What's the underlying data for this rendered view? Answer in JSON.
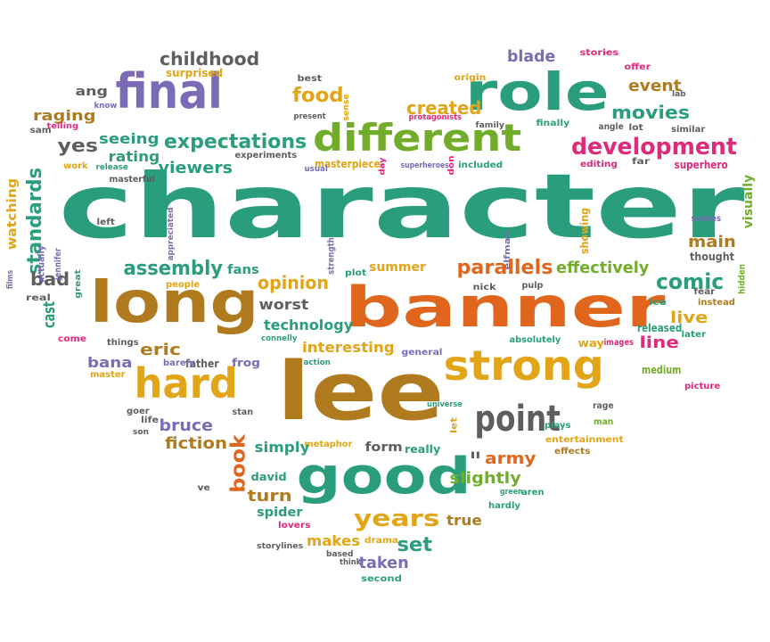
{
  "colors": {
    "green": "#2a9d7c",
    "orange": "#e0661e",
    "brown": "#b07b1e",
    "gold": "#e3a518",
    "purple": "#7b6bb7",
    "gray": "#5e5e5e",
    "pink": "#e0297a",
    "lime": "#71ad2b"
  },
  "words": [
    {
      "text": "character",
      "color": "green"
    },
    {
      "text": "banner",
      "color": "orange"
    },
    {
      "text": "lee",
      "color": "brown"
    },
    {
      "text": "long",
      "color": "brown"
    },
    {
      "text": "good",
      "color": "green"
    },
    {
      "text": "strong",
      "color": "gold"
    },
    {
      "text": "hard",
      "color": "gold"
    },
    {
      "text": "role",
      "color": "green"
    },
    {
      "text": "final",
      "color": "purple"
    },
    {
      "text": "different",
      "color": "lime"
    },
    {
      "text": "point",
      "color": "gray"
    },
    {
      "text": "development",
      "color": "pink"
    },
    {
      "text": "expectations",
      "color": "green"
    },
    {
      "text": "childhood",
      "color": "gray"
    },
    {
      "text": "parallels",
      "color": "orange"
    },
    {
      "text": "comic",
      "color": "green"
    },
    {
      "text": "years",
      "color": "gold"
    },
    {
      "text": "food",
      "color": "gold"
    },
    {
      "text": "movies",
      "color": "green"
    },
    {
      "text": "standards",
      "color": "green"
    },
    {
      "text": "book",
      "color": "orange"
    },
    {
      "text": "assembly",
      "color": "green"
    },
    {
      "text": "opinion",
      "color": "gold"
    },
    {
      "text": "created",
      "color": "gold"
    },
    {
      "text": "blade",
      "color": "purple"
    },
    {
      "text": "event",
      "color": "brown"
    },
    {
      "text": "viewers",
      "color": "green"
    },
    {
      "text": "seeing",
      "color": "green"
    },
    {
      "text": "effectively",
      "color": "lime"
    },
    {
      "text": "bruce",
      "color": "purple"
    },
    {
      "text": "fiction",
      "color": "brown"
    },
    {
      "text": "army",
      "color": "orange"
    },
    {
      "text": "slightly",
      "color": "lime"
    },
    {
      "text": "set",
      "color": "green"
    },
    {
      "text": "taken",
      "color": "purple"
    },
    {
      "text": "yes",
      "color": "gray"
    },
    {
      "text": "raging",
      "color": "brown"
    },
    {
      "text": "rating",
      "color": "green"
    },
    {
      "text": "bad",
      "color": "gray"
    },
    {
      "text": "cast",
      "color": "green"
    },
    {
      "text": "eric",
      "color": "brown"
    },
    {
      "text": "bana",
      "color": "purple"
    },
    {
      "text": "main",
      "color": "brown"
    },
    {
      "text": "live",
      "color": "gold"
    },
    {
      "text": "line",
      "color": "pink"
    },
    {
      "text": "simply",
      "color": "green"
    },
    {
      "text": "turn",
      "color": "brown"
    },
    {
      "text": "makes",
      "color": "gold"
    },
    {
      "text": "true",
      "color": "brown"
    },
    {
      "text": "worst",
      "color": "gray"
    },
    {
      "text": "technology",
      "color": "green"
    },
    {
      "text": "interesting",
      "color": "gold"
    },
    {
      "text": "summer",
      "color": "gold"
    },
    {
      "text": "ang",
      "color": "gray"
    },
    {
      "text": "watching",
      "color": "gold"
    },
    {
      "text": "visually",
      "color": "lime"
    },
    {
      "text": "fans",
      "color": "green"
    },
    {
      "text": "superhero",
      "color": "pink"
    },
    {
      "text": "form",
      "color": "gray"
    },
    {
      "text": "really",
      "color": "green"
    },
    {
      "text": "spider",
      "color": "green"
    },
    {
      "text": "frog",
      "color": "purple"
    },
    {
      "text": "nick",
      "color": "gray"
    },
    {
      "text": "pulp",
      "color": "gray"
    },
    {
      "text": "david",
      "color": "green"
    },
    {
      "text": "lovers",
      "color": "pink"
    },
    {
      "text": "drama",
      "color": "gold"
    },
    {
      "text": "second",
      "color": "green"
    },
    {
      "text": "metaphor",
      "color": "gold"
    },
    {
      "text": "thought",
      "color": "gray"
    },
    {
      "text": "released",
      "color": "green"
    },
    {
      "text": "medium",
      "color": "lime"
    },
    {
      "text": "showing",
      "color": "gold"
    },
    {
      "text": "editing",
      "color": "pink"
    },
    {
      "text": "far",
      "color": "gray"
    },
    {
      "text": "included",
      "color": "green"
    },
    {
      "text": "masterpiece",
      "color": "gold"
    },
    {
      "text": "experiments",
      "color": "gray"
    },
    {
      "text": "absolutely",
      "color": "green"
    },
    {
      "text": "entertainment",
      "color": "gold"
    },
    {
      "text": "effects",
      "color": "brown"
    },
    {
      "text": "later",
      "color": "green"
    },
    {
      "text": "instead",
      "color": "brown"
    },
    {
      "text": "way",
      "color": "gold"
    },
    {
      "text": "images",
      "color": "pink"
    },
    {
      "text": "father",
      "color": "gray"
    },
    {
      "text": "barely",
      "color": "purple"
    },
    {
      "text": "general",
      "color": "purple"
    },
    {
      "text": "things",
      "color": "gray"
    },
    {
      "text": "stan",
      "color": "gray"
    },
    {
      "text": "master",
      "color": "gold"
    },
    {
      "text": "best",
      "color": "gray"
    },
    {
      "text": "origin",
      "color": "gold"
    },
    {
      "text": "stories",
      "color": "pink"
    },
    {
      "text": "offer",
      "color": "pink"
    },
    {
      "text": "similar",
      "color": "gray"
    },
    {
      "text": "lot",
      "color": "gray"
    },
    {
      "text": "angle",
      "color": "gray"
    },
    {
      "text": "finally",
      "color": "green"
    },
    {
      "text": "surprised",
      "color": "gold"
    },
    {
      "text": "strength",
      "color": "purple"
    },
    {
      "text": "people",
      "color": "gold"
    },
    {
      "text": "actually",
      "color": "purple"
    },
    {
      "text": "jennifer",
      "color": "purple"
    },
    {
      "text": "plays",
      "color": "green"
    },
    {
      "text": "hardly",
      "color": "green"
    },
    {
      "text": "aren",
      "color": "green"
    },
    {
      "text": "green",
      "color": "green"
    },
    {
      "text": "rage",
      "color": "gray"
    },
    {
      "text": "man",
      "color": "lime"
    },
    {
      "text": "ice",
      "color": "green"
    },
    {
      "text": "fear",
      "color": "gray"
    },
    {
      "text": "picture",
      "color": "pink"
    },
    {
      "text": "hidden",
      "color": "lime"
    },
    {
      "text": "scenes",
      "color": "purple"
    },
    {
      "text": "elfman",
      "color": "purple"
    },
    {
      "text": "ll",
      "color": "gray"
    },
    {
      "text": "universe",
      "color": "green"
    },
    {
      "text": "let",
      "color": "gold"
    },
    {
      "text": "think",
      "color": "gray"
    },
    {
      "text": "based",
      "color": "gray"
    },
    {
      "text": "storylines",
      "color": "gray"
    },
    {
      "text": "ve",
      "color": "gray"
    },
    {
      "text": "life",
      "color": "gray"
    },
    {
      "text": "goer",
      "color": "gray"
    },
    {
      "text": "connelly",
      "color": "green"
    },
    {
      "text": "action",
      "color": "green"
    },
    {
      "text": "plot",
      "color": "green"
    },
    {
      "text": "appreciated",
      "color": "purple"
    },
    {
      "text": "great",
      "color": "green"
    },
    {
      "text": "films",
      "color": "purple"
    },
    {
      "text": "real",
      "color": "gray"
    },
    {
      "text": "come",
      "color": "pink"
    },
    {
      "text": "son",
      "color": "gray"
    },
    {
      "text": "left",
      "color": "gray"
    },
    {
      "text": "masterful",
      "color": "gray"
    },
    {
      "text": "work",
      "color": "gold"
    },
    {
      "text": "release",
      "color": "green"
    },
    {
      "text": "sam",
      "color": "gray"
    },
    {
      "text": "telling",
      "color": "pink"
    },
    {
      "text": "know",
      "color": "purple"
    },
    {
      "text": "usual",
      "color": "purple"
    },
    {
      "text": "day",
      "color": "pink"
    },
    {
      "text": "present",
      "color": "gray"
    },
    {
      "text": "sense",
      "color": "gold"
    },
    {
      "text": "don",
      "color": "pink"
    },
    {
      "text": "superheroes",
      "color": "purple"
    },
    {
      "text": "protagonists",
      "color": "pink"
    },
    {
      "text": "family",
      "color": "gray"
    },
    {
      "text": "lab",
      "color": "gray"
    }
  ]
}
